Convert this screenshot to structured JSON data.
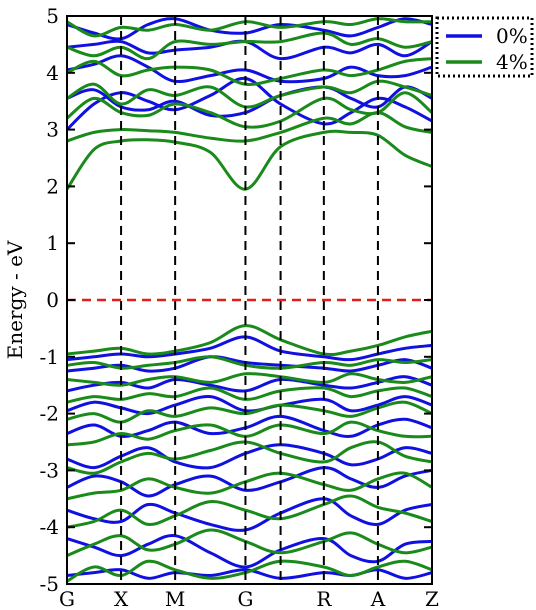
{
  "chart_data": {
    "type": "line",
    "title": "",
    "xlabel": "",
    "ylabel": "Energy - eV",
    "ylim": [
      -5,
      5
    ],
    "yticks": [
      -5,
      -4,
      -3,
      -2,
      -1,
      0,
      1,
      2,
      3,
      4,
      5
    ],
    "k_points": [
      "G",
      "X",
      "M",
      "G",
      "R",
      "A",
      "Z"
    ],
    "k_positions": [
      0,
      1,
      2,
      3.3,
      4.75,
      5.75,
      6.75
    ],
    "special_line_positions": [
      1,
      2,
      3.3,
      3.95,
      4.75,
      5.75
    ],
    "fermi_level": 0,
    "legend": {
      "placement": "outside-top-right",
      "entries": [
        {
          "label": "0%",
          "color": "#1010e0"
        },
        {
          "label": "4%",
          "color": "#1a8a1a"
        }
      ]
    },
    "colors": {
      "fermi": "#e01e1e",
      "kline": "#000000"
    },
    "series": [
      {
        "name": "0%",
        "color": "#1010e0",
        "x": [
          0,
          0.5,
          1,
          1.5,
          2,
          2.65,
          3.3,
          3.95,
          4.75,
          5.25,
          5.75,
          6.25,
          6.75
        ],
        "bands": [
          [
            -4.85,
            -4.8,
            -4.75,
            -4.9,
            -4.8,
            -4.85,
            -4.75,
            -4.9,
            -4.8,
            -4.85,
            -4.75,
            -4.9,
            -4.8
          ],
          [
            -4.2,
            -4.35,
            -4.5,
            -4.3,
            -4.15,
            -4.45,
            -4.7,
            -4.4,
            -4.2,
            -4.5,
            -4.6,
            -4.3,
            -4.25
          ],
          [
            -3.7,
            -3.85,
            -3.9,
            -3.6,
            -3.75,
            -3.95,
            -4.05,
            -3.75,
            -3.5,
            -3.8,
            -3.95,
            -3.7,
            -3.6
          ],
          [
            -3.3,
            -3.1,
            -3.2,
            -3.45,
            -3.25,
            -3.1,
            -3.35,
            -3.2,
            -2.95,
            -3.15,
            -3.3,
            -3.1,
            -3.0
          ],
          [
            -2.8,
            -2.95,
            -2.75,
            -2.6,
            -2.85,
            -2.95,
            -2.7,
            -2.55,
            -2.7,
            -2.9,
            -2.8,
            -2.6,
            -2.7
          ],
          [
            -2.35,
            -2.2,
            -2.4,
            -2.3,
            -2.15,
            -2.35,
            -2.25,
            -2.05,
            -2.3,
            -2.4,
            -2.2,
            -2.1,
            -2.25
          ],
          [
            -1.95,
            -1.8,
            -1.9,
            -2.0,
            -1.85,
            -1.7,
            -1.95,
            -1.85,
            -1.75,
            -1.95,
            -1.85,
            -1.7,
            -1.85
          ],
          [
            -1.6,
            -1.5,
            -1.45,
            -1.55,
            -1.4,
            -1.5,
            -1.6,
            -1.4,
            -1.5,
            -1.55,
            -1.45,
            -1.35,
            -1.5
          ],
          [
            -1.25,
            -1.2,
            -1.15,
            -1.25,
            -1.2,
            -1.0,
            -1.1,
            -1.15,
            -1.2,
            -1.25,
            -1.15,
            -1.05,
            -1.2
          ],
          [
            -1.05,
            -1.0,
            -0.95,
            -1.0,
            -0.95,
            -0.85,
            -0.65,
            -0.9,
            -1.0,
            -1.05,
            -0.95,
            -0.85,
            -0.8
          ],
          [
            3.0,
            3.45,
            3.65,
            3.5,
            3.35,
            3.6,
            3.9,
            3.45,
            3.1,
            3.3,
            3.55,
            3.4,
            3.15
          ],
          [
            3.55,
            3.7,
            3.4,
            3.35,
            3.5,
            3.25,
            3.3,
            3.6,
            3.75,
            3.55,
            3.4,
            3.75,
            3.55
          ],
          [
            4.05,
            4.15,
            4.3,
            4.1,
            3.85,
            3.95,
            4.05,
            3.85,
            3.9,
            4.1,
            3.95,
            3.95,
            4.1
          ],
          [
            4.45,
            4.5,
            4.55,
            4.35,
            4.4,
            4.45,
            4.55,
            4.25,
            4.45,
            4.35,
            4.5,
            4.3,
            4.55
          ],
          [
            4.85,
            4.7,
            4.6,
            4.85,
            4.95,
            4.75,
            4.7,
            4.85,
            4.75,
            4.65,
            4.8,
            4.95,
            4.85
          ]
        ]
      },
      {
        "name": "4%",
        "color": "#1a8a1a",
        "x": [
          0,
          0.5,
          1,
          1.5,
          2,
          2.65,
          3.3,
          3.95,
          4.75,
          5.25,
          5.75,
          6.25,
          6.75
        ],
        "bands": [
          [
            -4.95,
            -4.7,
            -4.85,
            -4.6,
            -4.75,
            -4.9,
            -4.8,
            -4.6,
            -4.7,
            -4.85,
            -4.7,
            -4.6,
            -4.75
          ],
          [
            -4.5,
            -4.3,
            -4.15,
            -4.4,
            -4.3,
            -4.05,
            -4.25,
            -4.45,
            -4.25,
            -4.1,
            -4.3,
            -4.45,
            -4.35
          ],
          [
            -4.0,
            -3.9,
            -3.7,
            -3.95,
            -3.8,
            -3.55,
            -3.7,
            -3.85,
            -3.6,
            -3.45,
            -3.65,
            -3.75,
            -3.9
          ],
          [
            -3.5,
            -3.4,
            -3.35,
            -3.15,
            -3.3,
            -3.4,
            -3.2,
            -3.05,
            -3.25,
            -3.35,
            -3.15,
            -3.05,
            -3.3
          ],
          [
            -2.95,
            -3.05,
            -2.85,
            -2.7,
            -2.8,
            -2.65,
            -2.5,
            -2.7,
            -2.85,
            -2.6,
            -2.5,
            -2.75,
            -2.85
          ],
          [
            -2.55,
            -2.5,
            -2.35,
            -2.45,
            -2.3,
            -2.2,
            -2.4,
            -2.2,
            -2.35,
            -2.15,
            -2.3,
            -2.4,
            -2.4
          ],
          [
            -2.1,
            -2.0,
            -2.15,
            -1.95,
            -2.05,
            -1.9,
            -2.0,
            -1.85,
            -1.95,
            -2.05,
            -1.9,
            -1.8,
            -2.0
          ],
          [
            -1.8,
            -1.7,
            -1.75,
            -1.65,
            -1.7,
            -1.55,
            -1.75,
            -1.6,
            -1.55,
            -1.7,
            -1.6,
            -1.55,
            -1.7
          ],
          [
            -1.4,
            -1.45,
            -1.5,
            -1.4,
            -1.35,
            -1.45,
            -1.3,
            -1.35,
            -1.45,
            -1.3,
            -1.4,
            -1.45,
            -1.35
          ],
          [
            -1.15,
            -1.1,
            -1.2,
            -1.15,
            -1.1,
            -1.0,
            -1.15,
            -1.2,
            -1.1,
            -1.15,
            -1.05,
            -1.1,
            -1.05
          ],
          [
            -0.95,
            -0.9,
            -0.85,
            -0.95,
            -0.9,
            -0.75,
            -0.45,
            -0.7,
            -0.95,
            -0.9,
            -0.8,
            -0.65,
            -0.55
          ],
          [
            1.95,
            2.65,
            2.8,
            2.82,
            2.78,
            2.6,
            1.95,
            2.7,
            2.95,
            2.95,
            2.9,
            2.55,
            2.35
          ],
          [
            2.8,
            2.95,
            3.0,
            2.98,
            2.95,
            2.85,
            2.8,
            2.95,
            3.2,
            3.1,
            3.3,
            3.05,
            2.95
          ],
          [
            3.2,
            3.55,
            3.3,
            3.25,
            3.45,
            3.3,
            3.05,
            3.15,
            3.55,
            3.35,
            3.3,
            3.65,
            3.3
          ],
          [
            3.55,
            3.8,
            3.45,
            3.7,
            3.6,
            3.75,
            3.4,
            3.6,
            3.75,
            3.65,
            3.85,
            3.75,
            3.6
          ],
          [
            4.0,
            4.2,
            3.95,
            4.05,
            4.1,
            4.05,
            3.8,
            3.9,
            4.05,
            3.95,
            4.05,
            4.2,
            4.25
          ],
          [
            4.45,
            4.3,
            4.45,
            4.25,
            4.55,
            4.5,
            4.55,
            4.55,
            4.7,
            4.5,
            4.6,
            4.45,
            4.55
          ],
          [
            4.9,
            4.65,
            4.8,
            4.75,
            4.85,
            4.75,
            4.9,
            4.8,
            4.9,
            4.85,
            4.95,
            4.9,
            4.9
          ]
        ]
      }
    ]
  }
}
